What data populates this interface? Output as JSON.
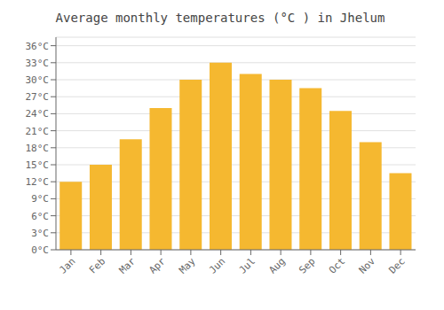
{
  "chart_data": {
    "type": "bar",
    "title": "Average monthly temperatures (°C ) in Jhelum",
    "categories": [
      "Jan",
      "Feb",
      "Mar",
      "Apr",
      "May",
      "Jun",
      "Jul",
      "Aug",
      "Sep",
      "Oct",
      "Nov",
      "Dec"
    ],
    "values": [
      12,
      15,
      19.5,
      25,
      30,
      33,
      31,
      30,
      28.5,
      24.5,
      19,
      13.5
    ],
    "color": "#F5B830",
    "ylim": [
      0,
      37.5
    ],
    "yticks": [
      {
        "value": 0,
        "label": "0°C"
      },
      {
        "value": 3,
        "label": "3°C"
      },
      {
        "value": 6,
        "label": "6°C"
      },
      {
        "value": 9,
        "label": "9°C"
      },
      {
        "value": 12,
        "label": "12°C"
      },
      {
        "value": 15,
        "label": "15°C"
      },
      {
        "value": 18,
        "label": "18°C"
      },
      {
        "value": 21,
        "label": "21°C"
      },
      {
        "value": 24,
        "label": "24°C"
      },
      {
        "value": 27,
        "label": "27°C"
      },
      {
        "value": 30,
        "label": "30°C"
      },
      {
        "value": 33,
        "label": "33°C"
      },
      {
        "value": 36,
        "label": "36°C"
      }
    ],
    "grid": true
  }
}
